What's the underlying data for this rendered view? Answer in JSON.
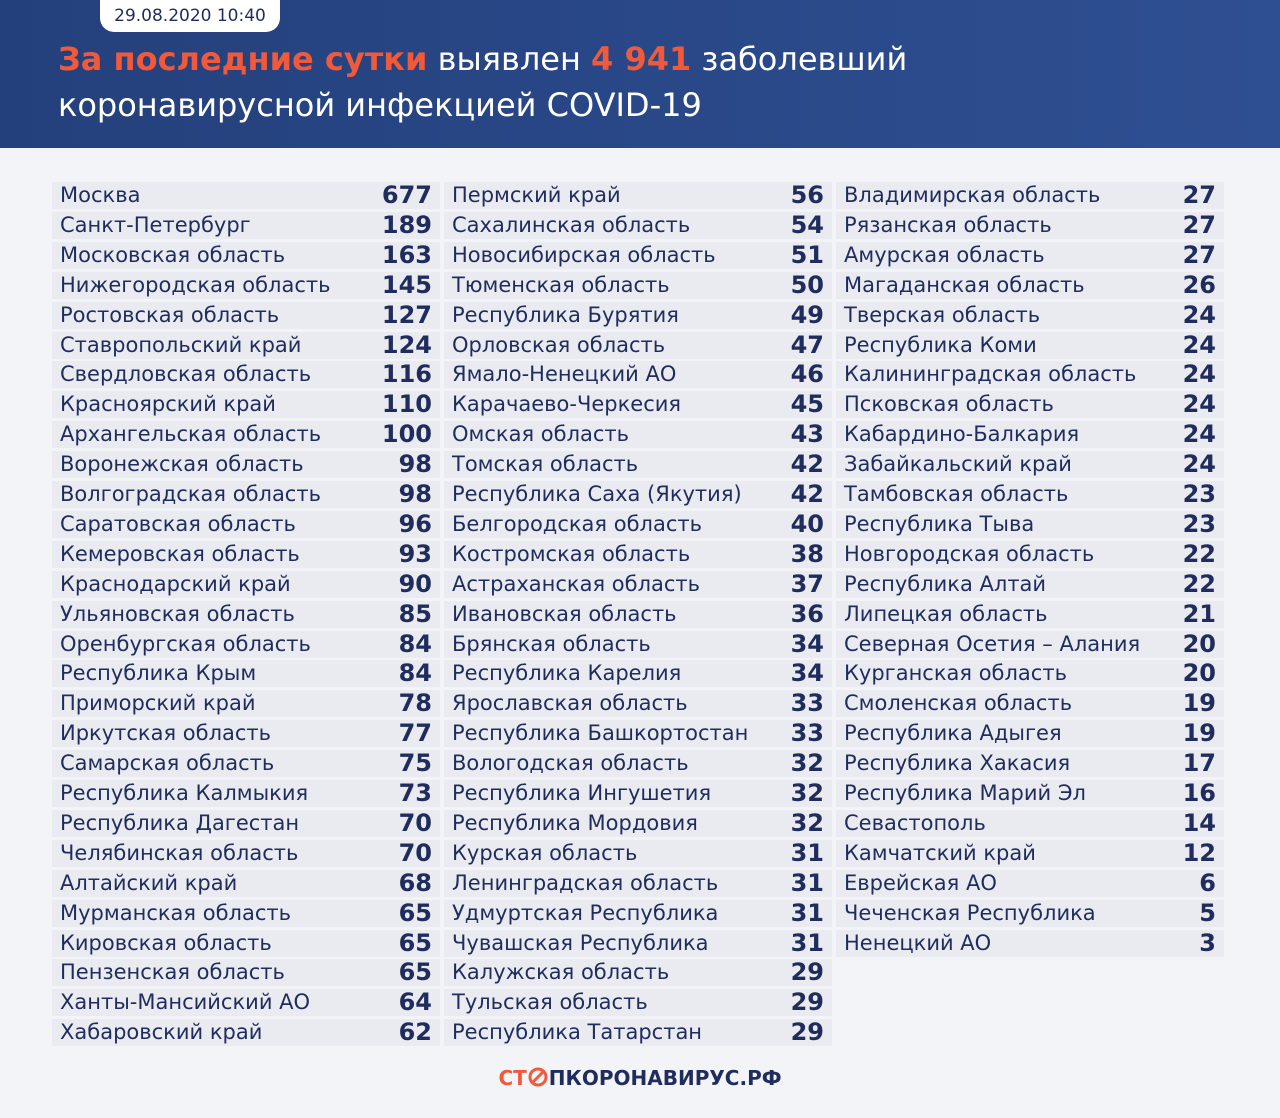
{
  "header": {
    "date": "29.08.2020 10:40",
    "title": [
      "За последние сутки",
      "выявлен",
      "4 941",
      "заболевший"
    ],
    "subtitle": "коронавирусной инфекцией COVID-19"
  },
  "columns": [
    {
      "rows": [
        [
          "Москва",
          677
        ],
        [
          "Санкт-Петербург",
          189
        ],
        [
          "Московская область",
          163
        ],
        [
          "Нижегородская область",
          145
        ],
        [
          "Ростовская область",
          127
        ],
        [
          "Ставропольский край",
          124
        ],
        [
          "Свердловская область",
          116
        ],
        [
          "Красноярский край",
          110
        ],
        [
          "Архангельская область",
          100
        ],
        [
          "Воронежская область",
          98
        ],
        [
          "Волгоградская область",
          98
        ],
        [
          "Саратовская область",
          96
        ],
        [
          "Кемеровская область",
          93
        ],
        [
          "Краснодарский край",
          90
        ],
        [
          "Ульяновская область",
          85
        ],
        [
          "Оренбургская область",
          84
        ],
        [
          "Республика Крым",
          84
        ],
        [
          "Приморский край",
          78
        ],
        [
          "Иркутская область",
          77
        ],
        [
          "Самарская область",
          75
        ],
        [
          "Республика Калмыкия",
          73
        ],
        [
          "Республика Дагестан",
          70
        ],
        [
          "Челябинская область",
          70
        ],
        [
          "Алтайский край",
          68
        ],
        [
          "Мурманская область",
          65
        ],
        [
          "Кировская область",
          65
        ],
        [
          "Пензенская область",
          65
        ],
        [
          "Ханты-Мансийский АО",
          64
        ],
        [
          "Хабаровский край",
          62
        ]
      ]
    },
    {
      "rows": [
        [
          "Пермский край",
          56
        ],
        [
          "Сахалинская область",
          54
        ],
        [
          "Новосибирская область",
          51
        ],
        [
          "Тюменская область",
          50
        ],
        [
          "Республика Бурятия",
          49
        ],
        [
          "Орловская область",
          47
        ],
        [
          "Ямало-Ненецкий АО",
          46
        ],
        [
          "Карачаево-Черкесия",
          45
        ],
        [
          "Омская область",
          43
        ],
        [
          "Томская область",
          42
        ],
        [
          "Республика Саха (Якутия)",
          42
        ],
        [
          "Белгородская область",
          40
        ],
        [
          "Костромская область",
          38
        ],
        [
          "Астраханская область",
          37
        ],
        [
          "Ивановская область",
          36
        ],
        [
          "Брянская область",
          34
        ],
        [
          "Республика Карелия",
          34
        ],
        [
          "Ярославская область",
          33
        ],
        [
          "Республика Башкортостан",
          33
        ],
        [
          "Вологодская область",
          32
        ],
        [
          "Республика Ингушетия",
          32
        ],
        [
          "Республика Мордовия",
          32
        ],
        [
          "Курская область",
          31
        ],
        [
          "Ленинградская область",
          31
        ],
        [
          "Удмуртская Республика",
          31
        ],
        [
          "Чувашская Республика",
          31
        ],
        [
          "Калужская область",
          29
        ],
        [
          "Тульская область",
          29
        ],
        [
          "Республика Татарстан",
          29
        ]
      ]
    },
    {
      "rows": [
        [
          "Владимирская область",
          27
        ],
        [
          "Рязанская область",
          27
        ],
        [
          "Амурская область",
          27
        ],
        [
          "Магаданская область",
          26
        ],
        [
          "Тверская область",
          24
        ],
        [
          "Республика Коми",
          24
        ],
        [
          "Калининградская область",
          24
        ],
        [
          "Псковская область",
          24
        ],
        [
          "Кабардино-Балкария",
          24
        ],
        [
          "Забайкальский край",
          24
        ],
        [
          "Тамбовская область",
          23
        ],
        [
          "Республика Тыва",
          23
        ],
        [
          "Новгородская область",
          22
        ],
        [
          "Республика Алтай",
          22
        ],
        [
          "Липецкая область",
          21
        ],
        [
          "Северная Осетия – Алания",
          20
        ],
        [
          "Курганская область",
          20
        ],
        [
          "Смоленская область",
          19
        ],
        [
          "Республика Адыгея",
          19
        ],
        [
          "Республика Хакасия",
          17
        ],
        [
          "Республика Марий Эл",
          16
        ],
        [
          "Севастополь",
          14
        ],
        [
          "Камчатский край",
          12
        ],
        [
          "Еврейская АО",
          6
        ],
        [
          "Чеченская Республика",
          5
        ],
        [
          "Ненецкий АО",
          3
        ]
      ]
    }
  ],
  "footer": {
    "logo_left": "СТ",
    "logo_right": "ПКОРОНАВИРУС.РФ"
  }
}
